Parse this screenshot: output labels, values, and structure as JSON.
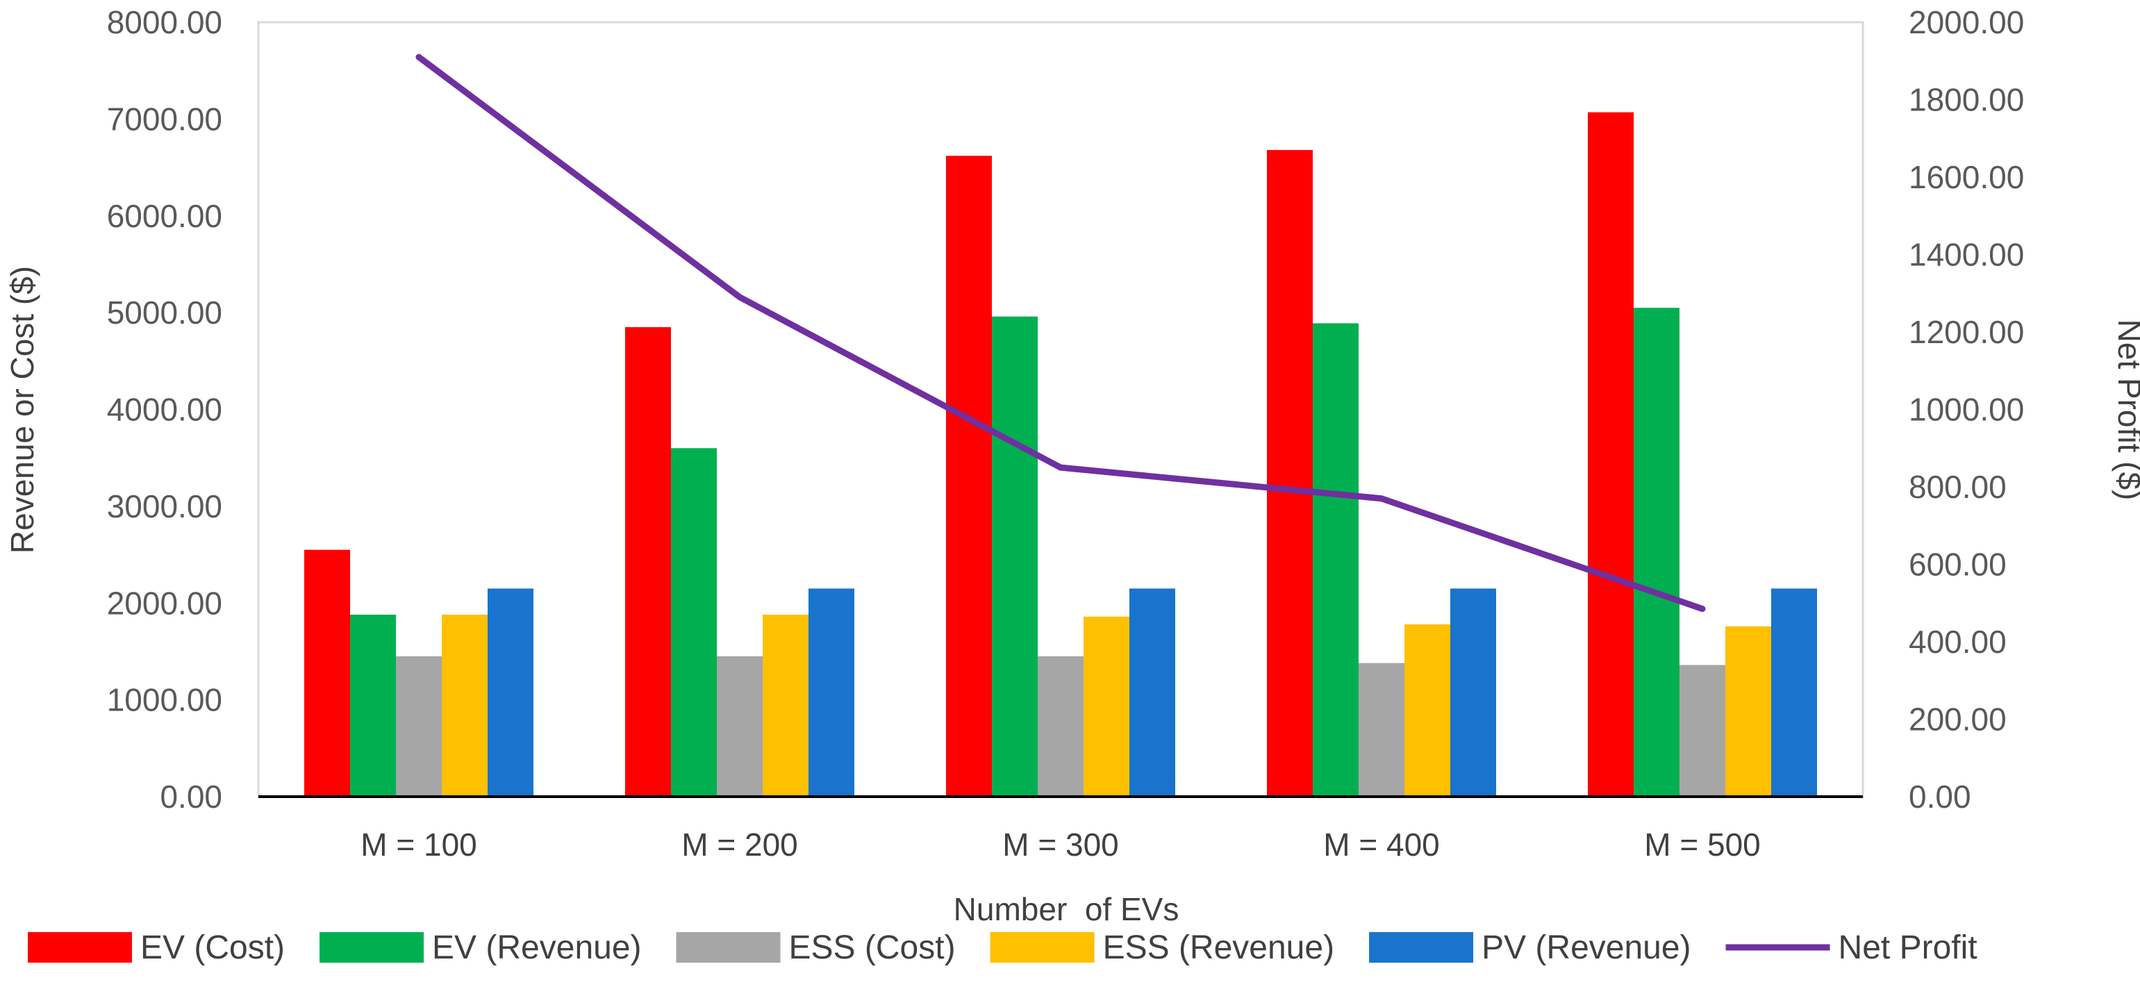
{
  "chart_data": {
    "type": "bar",
    "title": "",
    "xlabel": "Number  of EVs",
    "ylabel": "Revenue or Cost ($)",
    "y2label": "Net Profit ($)",
    "categories": [
      "M = 100",
      "M = 200",
      "M = 300",
      "M = 400",
      "M = 500"
    ],
    "ylim": [
      0,
      8000
    ],
    "y2lim": [
      0,
      2000
    ],
    "y_ticks": [
      "0.00",
      "1000.00",
      "2000.00",
      "3000.00",
      "4000.00",
      "5000.00",
      "6000.00",
      "7000.00",
      "8000.00"
    ],
    "y2_ticks": [
      "0.00",
      "200.00",
      "400.00",
      "600.00",
      "800.00",
      "1000.00",
      "1200.00",
      "1400.00",
      "1600.00",
      "1800.00",
      "2000.00"
    ],
    "series": [
      {
        "name": "EV (Cost)",
        "type": "bar",
        "color": "#ff0000",
        "values": [
          2550,
          4850,
          6620,
          6680,
          7070
        ]
      },
      {
        "name": "EV (Revenue)",
        "type": "bar",
        "color": "#00b050",
        "values": [
          1880,
          3600,
          4960,
          4890,
          5050
        ]
      },
      {
        "name": "ESS (Cost)",
        "type": "bar",
        "color": "#a6a6a6",
        "values": [
          1450,
          1450,
          1450,
          1380,
          1360
        ]
      },
      {
        "name": "ESS (Revenue)",
        "type": "bar",
        "color": "#ffc000",
        "values": [
          1880,
          1880,
          1860,
          1780,
          1760
        ]
      },
      {
        "name": "PV (Revenue)",
        "type": "bar",
        "color": "#1874cd",
        "values": [
          2150,
          2150,
          2150,
          2150,
          2150
        ]
      },
      {
        "name": "Net Profit",
        "type": "line",
        "axis": "secondary",
        "color": "#7030a0",
        "values": [
          1910,
          1290,
          850,
          770,
          485
        ]
      }
    ],
    "grid": false,
    "legend": "bottom"
  }
}
